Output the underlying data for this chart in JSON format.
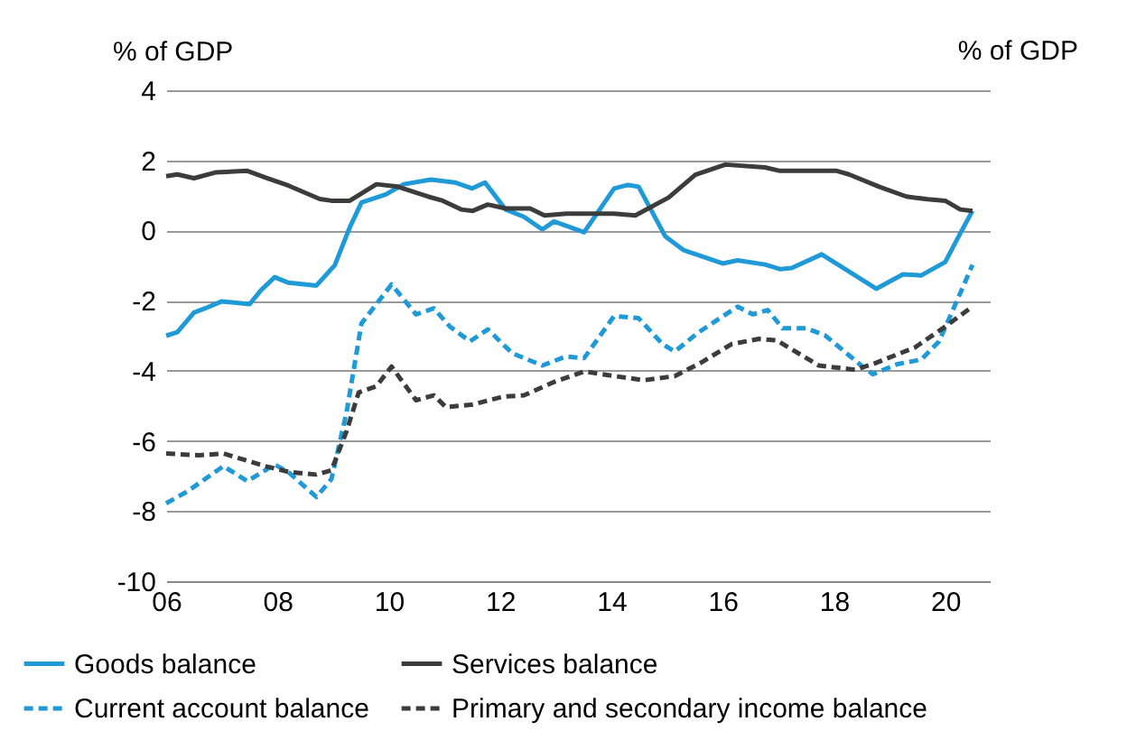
{
  "chart_data": {
    "type": "line",
    "ylabel": "% of GDP",
    "annotations": [
      "% of GDP"
    ],
    "xlim": [
      2006,
      2020.8
    ],
    "ylim": [
      -10,
      4
    ],
    "xticks": [
      {
        "value": 2006,
        "label": "06"
      },
      {
        "value": 2008,
        "label": "08"
      },
      {
        "value": 2010,
        "label": "10"
      },
      {
        "value": 2012,
        "label": "12"
      },
      {
        "value": 2014,
        "label": "14"
      },
      {
        "value": 2016,
        "label": "16"
      },
      {
        "value": 2018,
        "label": "18"
      },
      {
        "value": 2020,
        "label": "20"
      }
    ],
    "yticks": [
      -10,
      -8,
      -6,
      -4,
      -2,
      0,
      2,
      4
    ],
    "grid": "y",
    "legend": "bottom",
    "line_style": "solid",
    "series": [
      {
        "name": "Goods balance",
        "color": "#1f9ad6",
        "x": [
          2006,
          2006.2,
          2006.5,
          2006.7,
          2007,
          2007.5,
          2007.7,
          2007.95,
          2008.2,
          2008.7,
          2009.03,
          2009.3,
          2009.51,
          2009.95,
          2010.27,
          2010.76,
          2011.19,
          2011.5,
          2011.73,
          2012.1,
          2012.43,
          2012.76,
          2012.97,
          2013.51,
          2014.05,
          2014.3,
          2014.49,
          2014.97,
          2015.3,
          2016,
          2016.27,
          2016.76,
          2017.03,
          2017.24,
          2017.78,
          2018.76,
          2019.24,
          2019.57,
          2020,
          2020.27,
          2020.49
        ],
        "values": [
          -3.0,
          -2.9,
          -2.34,
          -2.22,
          -2.02,
          -2.1,
          -1.71,
          -1.33,
          -1.49,
          -1.57,
          -0.99,
          0.09,
          0.8,
          1.03,
          1.32,
          1.45,
          1.37,
          1.2,
          1.37,
          0.6,
          0.39,
          0.03,
          0.26,
          -0.05,
          1.2,
          1.3,
          1.25,
          -0.17,
          -0.56,
          -0.94,
          -0.85,
          -0.97,
          -1.1,
          -1.07,
          -0.68,
          -1.66,
          -1.25,
          -1.28,
          -0.9,
          -0.08,
          0.56
        ]
      },
      {
        "name": "Services balance",
        "color": "#3c3c3c",
        "x": [
          2006,
          2006.2,
          2006.5,
          2006.9,
          2007.46,
          2007.8,
          2008.2,
          2008.76,
          2008.97,
          2009.3,
          2009.78,
          2010.16,
          2010.7,
          2010.97,
          2011.3,
          2011.51,
          2011.78,
          2012.1,
          2012.54,
          2012.8,
          2013.19,
          2014.05,
          2014.43,
          2015.03,
          2015.51,
          2016.05,
          2016.76,
          2017.03,
          2017.73,
          2018.05,
          2018.27,
          2018.81,
          2019.3,
          2019.68,
          2020,
          2020.27,
          2020.49
        ],
        "values": [
          1.55,
          1.6,
          1.49,
          1.66,
          1.7,
          1.5,
          1.28,
          0.9,
          0.85,
          0.85,
          1.32,
          1.25,
          0.97,
          0.85,
          0.6,
          0.56,
          0.74,
          0.63,
          0.63,
          0.43,
          0.48,
          0.48,
          0.43,
          0.94,
          1.59,
          1.88,
          1.8,
          1.7,
          1.7,
          1.7,
          1.6,
          1.25,
          0.97,
          0.89,
          0.85,
          0.6,
          0.56
        ]
      },
      {
        "name": "Current account balance",
        "color": "#1f9ad6",
        "line_style": "dashed",
        "x": [
          2006,
          2006.38,
          2007.03,
          2007.46,
          2007.95,
          2008.22,
          2008.7,
          2008.97,
          2009.24,
          2009.51,
          2010.05,
          2010.49,
          2010.81,
          2011.1,
          2011.46,
          2011.78,
          2012.22,
          2012.76,
          2013.19,
          2013.51,
          2014.05,
          2014.49,
          2014.92,
          2015.14,
          2015.57,
          2016.27,
          2016.54,
          2016.81,
          2017.08,
          2017.51,
          2017.84,
          2018.49,
          2018.7,
          2019.14,
          2019.57,
          2019.89,
          2020.22,
          2020.49
        ],
        "values": [
          -7.78,
          -7.44,
          -6.72,
          -7.15,
          -6.67,
          -6.92,
          -7.6,
          -7.09,
          -5.2,
          -2.65,
          -1.54,
          -2.39,
          -2.22,
          -2.74,
          -3.16,
          -2.82,
          -3.5,
          -3.85,
          -3.59,
          -3.64,
          -2.44,
          -2.5,
          -3.24,
          -3.45,
          -2.9,
          -2.17,
          -2.39,
          -2.27,
          -2.79,
          -2.79,
          -2.99,
          -3.85,
          -4.1,
          -3.81,
          -3.68,
          -3.16,
          -1.97,
          -0.98
        ]
      },
      {
        "name": "Primary and secondary income balance",
        "color": "#3c3c3c",
        "line_style": "dashed",
        "x": [
          2006,
          2006.59,
          2007.03,
          2007.78,
          2008.22,
          2008.7,
          2008.97,
          2009.24,
          2009.46,
          2009.78,
          2010.05,
          2010.49,
          2010.81,
          2011.03,
          2011.51,
          2012.05,
          2012.43,
          2012.97,
          2013.51,
          2014.05,
          2014.59,
          2015.14,
          2015.62,
          2016.16,
          2016.65,
          2016.97,
          2017.73,
          2018.38,
          2018.7,
          2019.46,
          2020,
          2020.49
        ],
        "values": [
          -6.36,
          -6.41,
          -6.36,
          -6.72,
          -6.89,
          -6.96,
          -6.84,
          -5.73,
          -4.62,
          -4.44,
          -3.88,
          -4.84,
          -4.7,
          -5.04,
          -4.96,
          -4.74,
          -4.7,
          -4.32,
          -4.02,
          -4.15,
          -4.27,
          -4.15,
          -3.76,
          -3.24,
          -3.09,
          -3.13,
          -3.85,
          -3.97,
          -3.81,
          -3.33,
          -2.74,
          -2.17
        ]
      }
    ]
  }
}
